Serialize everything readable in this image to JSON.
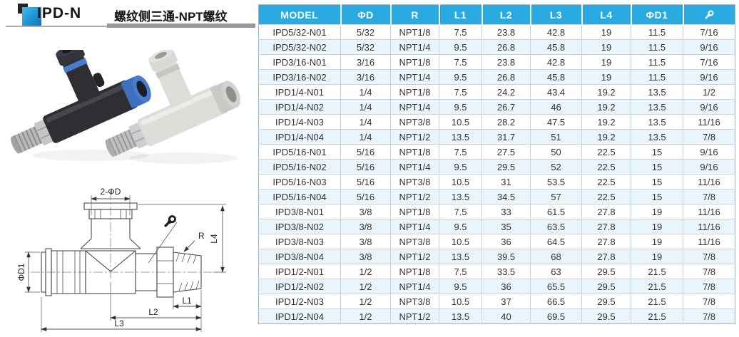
{
  "header": {
    "product_code": "IPD-N",
    "title_cn": "螺纹侧三通-NPT螺纹"
  },
  "table": {
    "columns": [
      "MODEL",
      "ΦD",
      "R",
      "L1",
      "L2",
      "L3",
      "L4",
      "ΦD1"
    ],
    "last_column_icon": "wrench-icon",
    "rows": [
      [
        "IPD5/32-N01",
        "5/32",
        "NPT1/8",
        "7.5",
        "23.8",
        "42.8",
        "19",
        "11.5",
        "7/16"
      ],
      [
        "IPD5/32-N02",
        "5/32",
        "NPT1/4",
        "9.5",
        "26.8",
        "45.8",
        "19",
        "11.5",
        "9/16"
      ],
      [
        "IPD3/16-N01",
        "3/16",
        "NPT1/8",
        "7.5",
        "23.8",
        "42.8",
        "19",
        "11.5",
        "7/16"
      ],
      [
        "IPD3/16-N02",
        "3/16",
        "NPT1/4",
        "9.5",
        "26.8",
        "45.8",
        "19",
        "11.5",
        "9/16"
      ],
      [
        "IPD1/4-N01",
        "1/4",
        "NPT1/8",
        "7.5",
        "24.2",
        "43.4",
        "19.2",
        "13.5",
        "1/2"
      ],
      [
        "IPD1/4-N02",
        "1/4",
        "NPT1/4",
        "9.5",
        "26.7",
        "46",
        "19.2",
        "13.5",
        "9/16"
      ],
      [
        "IPD1/4-N03",
        "1/4",
        "NPT3/8",
        "10.5",
        "28.2",
        "47.5",
        "19.2",
        "13.5",
        "11/16"
      ],
      [
        "IPD1/4-N04",
        "1/4",
        "NPT1/2",
        "13.5",
        "31.7",
        "51",
        "19.2",
        "13.5",
        "7/8"
      ],
      [
        "IPD5/16-N01",
        "5/16",
        "NPT1/8",
        "7.5",
        "27.5",
        "50",
        "22.5",
        "15",
        "9/16"
      ],
      [
        "IPD5/16-N02",
        "5/16",
        "NPT1/4",
        "9.5",
        "29.5",
        "52",
        "22.5",
        "15",
        "9/16"
      ],
      [
        "IPD5/16-N03",
        "5/16",
        "NPT3/8",
        "10.5",
        "31",
        "53.5",
        "22.5",
        "15",
        "11/16"
      ],
      [
        "IPD5/16-N04",
        "5/16",
        "NPT1/2",
        "13.5",
        "34.5",
        "57",
        "22.5",
        "15",
        "7/8"
      ],
      [
        "IPD3/8-N01",
        "3/8",
        "NPT1/8",
        "7.5",
        "33",
        "61.5",
        "27.8",
        "19",
        "11/16"
      ],
      [
        "IPD3/8-N02",
        "3/8",
        "NPT1/4",
        "9.5",
        "35",
        "63.5",
        "27.8",
        "19",
        "11/16"
      ],
      [
        "IPD3/8-N03",
        "3/8",
        "NPT3/8",
        "10.5",
        "36",
        "64.5",
        "27.8",
        "19",
        "11/16"
      ],
      [
        "IPD3/8-N04",
        "3/8",
        "NPT1/2",
        "13.5",
        "39.5",
        "68",
        "27.8",
        "19",
        "7/8"
      ],
      [
        "IPD1/2-N01",
        "1/2",
        "NPT1/8",
        "7.5",
        "33.5",
        "63",
        "29.5",
        "21.5",
        "7/8"
      ],
      [
        "IPD1/2-N02",
        "1/2",
        "NPT1/4",
        "9.5",
        "36",
        "65.5",
        "29.5",
        "21.5",
        "7/8"
      ],
      [
        "IPD1/2-N03",
        "1/2",
        "NPT3/8",
        "10.5",
        "37",
        "66.5",
        "29.5",
        "21.5",
        "7/8"
      ],
      [
        "IPD1/2-N04",
        "1/2",
        "NPT1/2",
        "13.5",
        "40",
        "69.5",
        "29.5",
        "21.5",
        "7/8"
      ]
    ]
  },
  "drawing": {
    "labels": {
      "top_ports": "2-ΦD",
      "left_diameter": "ΦD1",
      "thread": "R",
      "l1": "L1",
      "l2": "L2",
      "l3": "L3",
      "l4": "L4"
    }
  },
  "colors": {
    "table_header_bg": "#29abe2",
    "row_alt_bg": "#e9f4fb",
    "logo_blue": "#1a94d2",
    "logo_dark": "#23242a",
    "rule_gray": "#98999b"
  }
}
